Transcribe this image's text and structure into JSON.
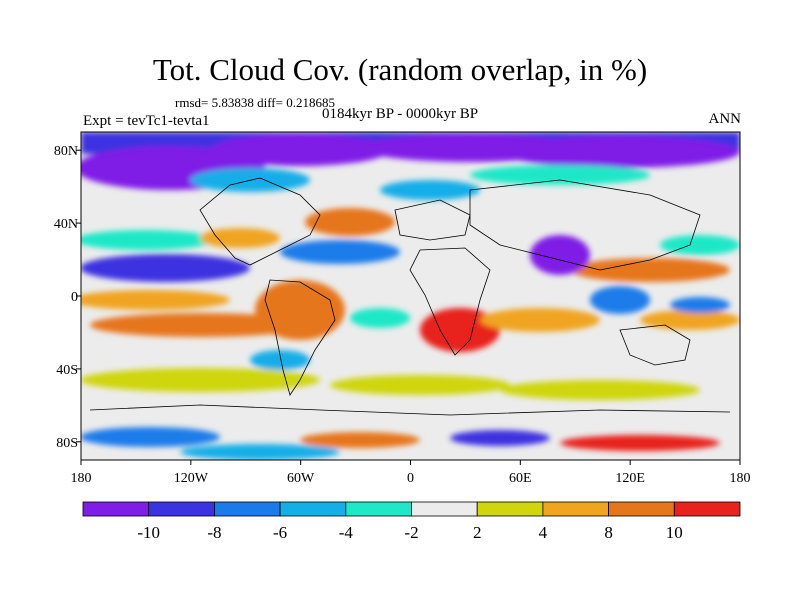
{
  "header": {
    "title": "Tot. Cloud Cov. (random overlap, in %)",
    "stats": "rmsd= 5.83838 diff= 0.218685",
    "period": "0184kyr BP - 0000kyr BP",
    "experiment": "Expt = tevTc1-tevta1",
    "season": "ANN"
  },
  "axes": {
    "lat_ticks": [
      "80N",
      "40N",
      "0",
      "40S",
      "80S"
    ],
    "lat_values": [
      80,
      40,
      0,
      -40,
      -80
    ],
    "lon_ticks": [
      "180",
      "120W",
      "60W",
      "0",
      "60E",
      "120E",
      "180"
    ],
    "lon_values": [
      -180,
      -120,
      -60,
      0,
      60,
      120,
      180
    ],
    "lat_range": [
      -90,
      90
    ],
    "lon_range": [
      -180,
      180
    ]
  },
  "colorbar": {
    "labels": [
      "-10",
      "-8",
      "-6",
      "-4",
      "-2",
      "2",
      "4",
      "8",
      "10"
    ],
    "colors": [
      "#7f1ee6",
      "#3c33e0",
      "#1b7bea",
      "#14aee8",
      "#1fe8c8",
      "#ececec",
      "#cfd60e",
      "#f0a420",
      "#e6761a",
      "#e8231e"
    ]
  },
  "field_colors": {
    "strong_neg": "#7f1ee6",
    "neg": "#3c33e0",
    "mid_neg": "#1b7bea",
    "weak_neg": "#14aee8",
    "slight_neg": "#1fe8c8",
    "neutral": "#ececec",
    "slight_pos": "#cfd60e",
    "pos": "#f0a420",
    "strong_pos": "#e8231e"
  }
}
